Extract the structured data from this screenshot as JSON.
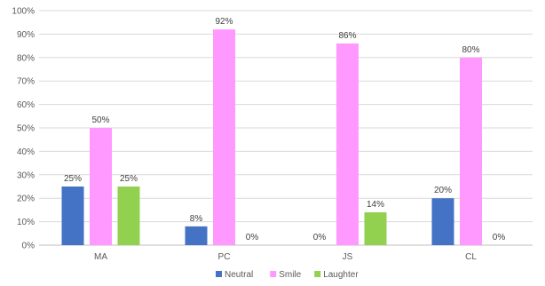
{
  "chart_data": {
    "type": "bar",
    "categories": [
      "MA",
      "PC",
      "JS",
      "CL"
    ],
    "series": [
      {
        "name": "Neutral",
        "values": [
          25,
          8,
          0,
          20
        ],
        "labels": [
          "25%",
          "8%",
          "0%",
          "20%"
        ],
        "color": "#4472C4"
      },
      {
        "name": "Smile",
        "values": [
          50,
          92,
          86,
          80
        ],
        "labels": [
          "50%",
          "92%",
          "86%",
          "80%"
        ],
        "color": "#FF99FF"
      },
      {
        "name": "Laughter",
        "values": [
          25,
          0,
          14,
          0
        ],
        "labels": [
          "25%",
          "0%",
          "14%",
          "0%"
        ],
        "color": "#92D050"
      }
    ],
    "ylim": [
      0,
      100
    ],
    "ytick_step": 10,
    "ytick_suffix": "%",
    "grid": true,
    "legend_position": "bottom-center",
    "title": "",
    "xlabel": "",
    "ylabel": ""
  }
}
